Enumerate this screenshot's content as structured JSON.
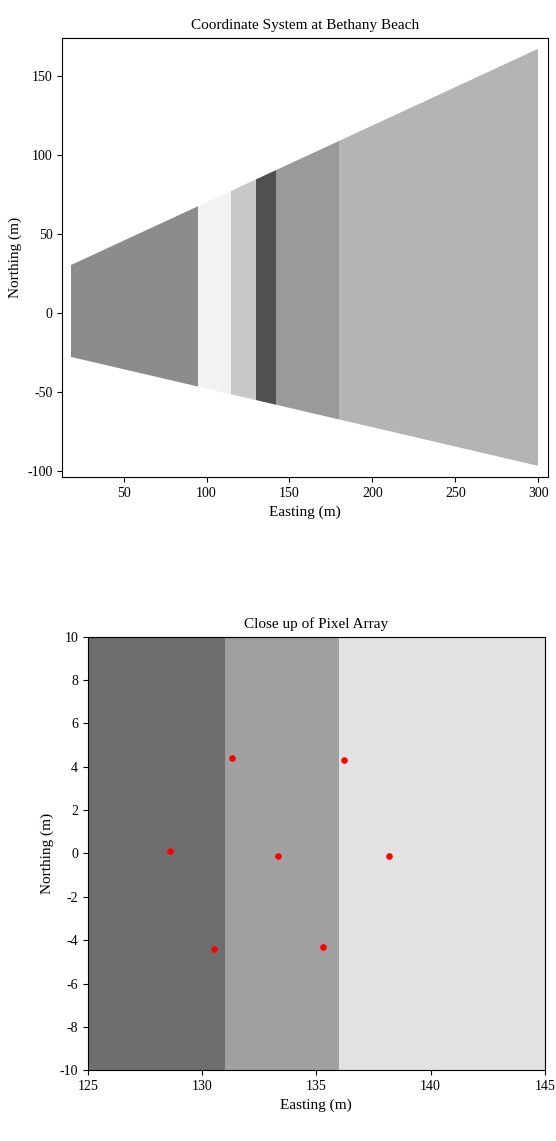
{
  "chart_data": [
    {
      "type": "image",
      "title": "Coordinate System at Bethany Beach",
      "xlabel": "Easting (m)",
      "ylabel": "Northing (m)",
      "xlim": [
        13,
        306
      ],
      "ylim": [
        -104,
        174
      ],
      "xticks": [
        50,
        100,
        150,
        200,
        250,
        300
      ],
      "yticks": [
        -100,
        -50,
        0,
        50,
        100,
        150
      ],
      "footprint": {
        "x": [
          18,
          300,
          300,
          18
        ],
        "y": [
          -28,
          -97,
          167,
          30
        ]
      },
      "bands": [
        {
          "x": [
            18,
            95
          ],
          "color": "#8c8c8c"
        },
        {
          "x": [
            95,
            115
          ],
          "color": "#f2f2f2"
        },
        {
          "x": [
            115,
            130
          ],
          "color": "#c8c8c8"
        },
        {
          "x": [
            130,
            142
          ],
          "color": "#505050"
        },
        {
          "x": [
            142,
            180
          ],
          "color": "#9a9a9a"
        },
        {
          "x": [
            180,
            300
          ],
          "color": "#b4b4b4"
        }
      ]
    },
    {
      "type": "scatter",
      "title": "Close up of Pixel Array",
      "xlabel": "Easting (m)",
      "ylabel": "Northing (m)",
      "xlim": [
        125,
        145
      ],
      "ylim": [
        -10,
        10
      ],
      "xticks": [
        125,
        130,
        135,
        140,
        145
      ],
      "yticks": [
        -10,
        -8,
        -6,
        -4,
        -2,
        0,
        2,
        4,
        6,
        8,
        10
      ],
      "x": [
        131.3,
        136.2,
        128.6,
        133.3,
        138.2,
        130.5,
        135.3
      ],
      "y": [
        4.4,
        4.3,
        0.1,
        -0.1,
        -0.1,
        -4.4,
        -4.3
      ],
      "color": "red",
      "marker": "o",
      "bands": [
        {
          "x": [
            125,
            131
          ],
          "color": "#6e6e6e"
        },
        {
          "x": [
            131,
            136
          ],
          "color": "#a0a0a0"
        },
        {
          "x": [
            136,
            145
          ],
          "color": "#e2e2e2"
        }
      ]
    }
  ]
}
